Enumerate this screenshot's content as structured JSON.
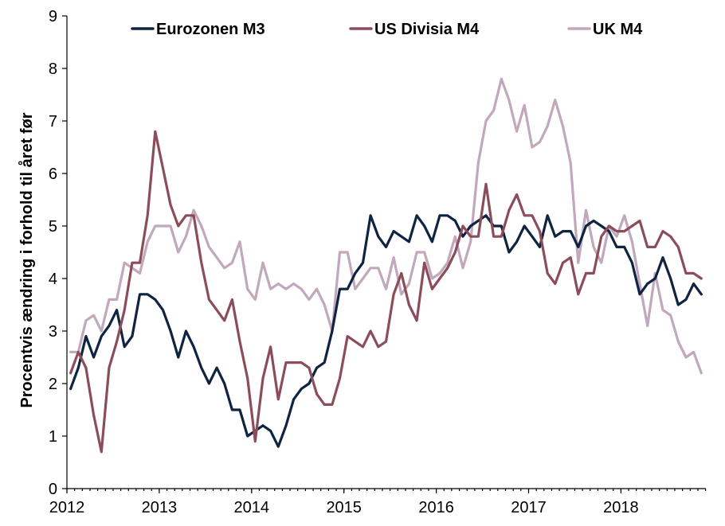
{
  "chart_data": {
    "type": "line",
    "title": "",
    "xlabel": "",
    "ylabel": "Procentvis ændring i forhold til året før",
    "ylim": [
      0,
      9
    ],
    "xlim": [
      2012,
      2018.92
    ],
    "x_ticks": [
      "2012",
      "2013",
      "2014",
      "2015",
      "2016",
      "2017",
      "2018"
    ],
    "y_ticks": [
      "0",
      "1",
      "2",
      "3",
      "4",
      "5",
      "6",
      "7",
      "8",
      "9"
    ],
    "grid": false,
    "legend_position": "top",
    "series": [
      {
        "name": "Eurozonen M3",
        "color": "#0f2441",
        "values": [
          1.9,
          2.3,
          2.9,
          2.5,
          2.9,
          3.1,
          3.4,
          2.7,
          2.9,
          3.7,
          3.7,
          3.6,
          3.4,
          3.0,
          2.5,
          3.0,
          2.7,
          2.3,
          2.0,
          2.3,
          2.0,
          1.5,
          1.5,
          1.0,
          1.1,
          1.2,
          1.1,
          0.8,
          1.2,
          1.7,
          1.9,
          2.0,
          2.3,
          2.4,
          3.0,
          3.8,
          3.8,
          4.1,
          4.3,
          5.2,
          4.8,
          4.6,
          4.9,
          4.8,
          4.7,
          5.2,
          5.0,
          4.7,
          5.2,
          5.2,
          5.1,
          4.8,
          5.0,
          5.1,
          5.2,
          5.0,
          5.0,
          4.5,
          4.7,
          5.0,
          4.8,
          4.6,
          5.2,
          4.8,
          4.9,
          4.9,
          4.6,
          5.0,
          5.1,
          5.0,
          4.9,
          4.6,
          4.6,
          4.3,
          3.7,
          3.9,
          4.0,
          4.4,
          4.0,
          3.5,
          3.6,
          3.9,
          3.7
        ],
        "x_start": 2012.04,
        "x_step": 0.0833
      },
      {
        "name": "US Divisia M4",
        "color": "#8c4d5b",
        "values": [
          2.2,
          2.6,
          2.3,
          1.4,
          0.7,
          2.3,
          2.8,
          3.4,
          4.3,
          4.3,
          5.2,
          6.8,
          6.1,
          5.4,
          5.0,
          5.2,
          5.2,
          4.3,
          3.6,
          3.4,
          3.2,
          3.6,
          2.8,
          2.1,
          0.9,
          2.1,
          2.7,
          1.7,
          2.4,
          2.4,
          2.4,
          2.3,
          1.8,
          1.6,
          1.6,
          2.1,
          2.9,
          2.8,
          2.7,
          3.0,
          2.7,
          2.8,
          3.7,
          4.1,
          3.5,
          3.2,
          4.3,
          3.8,
          4.0,
          4.2,
          4.5,
          5.0,
          4.8,
          4.8,
          5.8,
          4.8,
          4.8,
          5.3,
          5.6,
          5.2,
          5.2,
          4.9,
          4.1,
          3.9,
          4.3,
          4.4,
          3.7,
          4.1,
          4.1,
          4.8,
          5.0,
          4.9,
          4.9,
          5.0,
          5.1,
          4.6,
          4.6,
          4.9,
          4.8,
          4.6,
          4.1,
          4.1,
          4.0
        ],
        "x_start": 2012.04,
        "x_step": 0.0833
      },
      {
        "name": "UK M4",
        "color": "#c2a8bc",
        "values": [
          2.6,
          2.6,
          3.2,
          3.3,
          3.0,
          3.6,
          3.6,
          4.3,
          4.2,
          4.1,
          4.7,
          5.0,
          5.0,
          5.0,
          4.5,
          4.8,
          5.3,
          5.0,
          4.6,
          4.4,
          4.2,
          4.3,
          4.7,
          3.8,
          3.6,
          4.3,
          3.8,
          3.9,
          3.8,
          3.9,
          3.8,
          3.6,
          3.8,
          3.5,
          3.0,
          4.5,
          4.5,
          3.8,
          4.0,
          4.2,
          4.2,
          3.8,
          4.4,
          3.7,
          3.9,
          4.5,
          4.5,
          4.0,
          4.1,
          4.3,
          4.8,
          4.2,
          4.7,
          6.2,
          7.0,
          7.2,
          7.8,
          7.4,
          6.8,
          7.3,
          6.5,
          6.6,
          6.9,
          7.4,
          6.9,
          6.2,
          4.3,
          5.3,
          4.6,
          4.3,
          5.0,
          4.8,
          5.2,
          4.7,
          3.9,
          3.1,
          4.1,
          3.4,
          3.3,
          2.8,
          2.5,
          2.6,
          2.2
        ],
        "x_start": 2012.04,
        "x_step": 0.0833
      }
    ]
  }
}
